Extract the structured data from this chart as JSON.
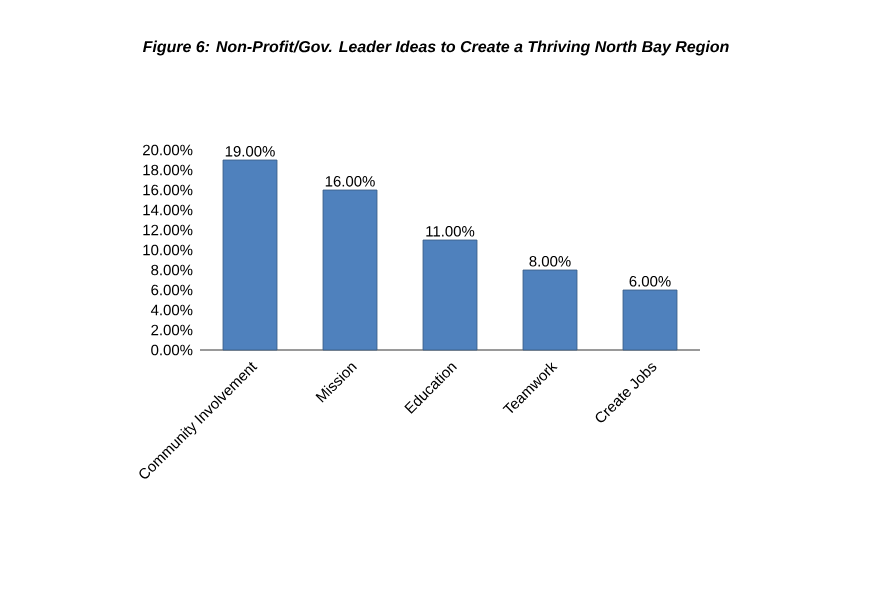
{
  "chart_data": {
    "type": "bar",
    "title": "Figure 6: Non-Profit/Gov. Leader Ideas to Create a Thriving North Bay Region",
    "categories": [
      "Community Involvement",
      "Mission",
      "Education",
      "Teamwork",
      "Create Jobs"
    ],
    "values": [
      19,
      16,
      11,
      8,
      6
    ],
    "value_labels": [
      "19.00%",
      "16.00%",
      "11.00%",
      "8.00%",
      "6.00%"
    ],
    "color": "#4f81bd",
    "ylim": [
      0,
      20
    ],
    "yticks": [
      {
        "value": 0,
        "label": "0.00%"
      },
      {
        "value": 2,
        "label": "2.00%"
      },
      {
        "value": 4,
        "label": "4.00%"
      },
      {
        "value": 6,
        "label": "6.00%"
      },
      {
        "value": 8,
        "label": "8.00%"
      },
      {
        "value": 10,
        "label": "10.00%"
      },
      {
        "value": 12,
        "label": "12.00%"
      },
      {
        "value": 14,
        "label": "14.00%"
      },
      {
        "value": 16,
        "label": "16.00%"
      },
      {
        "value": 18,
        "label": "18.00%"
      },
      {
        "value": 20,
        "label": "20.00%"
      }
    ]
  }
}
